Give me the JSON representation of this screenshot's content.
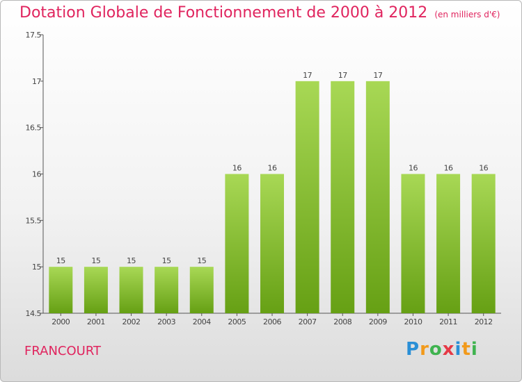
{
  "title": "Dotation Globale de Fonctionnement de 2000 à 2012",
  "subtitle": "(en milliers d'€)",
  "place": "FRANCOURT",
  "logo": {
    "letters": [
      "P",
      "r",
      "o",
      "x",
      "i",
      "t",
      "i"
    ],
    "colors": [
      "#2a8fd6",
      "#f29a1b",
      "#3fb34f",
      "#e63946",
      "#2a8fd6",
      "#f29a1b",
      "#3fb34f"
    ]
  },
  "colors": {
    "title": "#e0245e",
    "bar_top": "#a8d855",
    "bar_bottom": "#66a014",
    "axis": "#555555"
  },
  "chart_data": {
    "type": "bar",
    "categories": [
      "2000",
      "2001",
      "2002",
      "2003",
      "2004",
      "2005",
      "2006",
      "2007",
      "2008",
      "2009",
      "2010",
      "2011",
      "2012"
    ],
    "values": [
      15,
      15,
      15,
      15,
      15,
      16,
      16,
      17,
      17,
      17,
      16,
      16,
      16
    ],
    "data_labels": [
      "15",
      "15",
      "15",
      "15",
      "15",
      "16",
      "16",
      "17",
      "17",
      "17",
      "16",
      "16",
      "16"
    ],
    "y_ticks": [
      "14.5",
      "15",
      "15.5",
      "16",
      "16.5",
      "17",
      "17.5"
    ],
    "ylim": [
      14.5,
      17.5
    ],
    "grid": false
  }
}
